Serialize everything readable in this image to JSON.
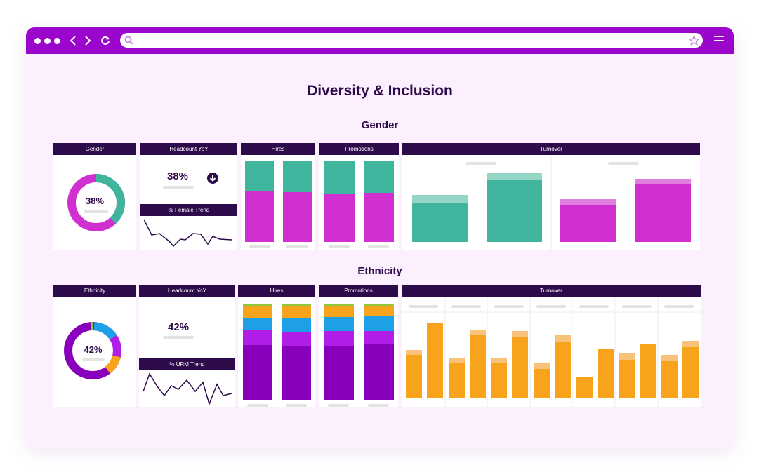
{
  "browser": {
    "icons": [
      "dot-icon",
      "back-icon",
      "forward-icon",
      "reload-icon",
      "search-icon",
      "star-icon",
      "menu-icon"
    ]
  },
  "page": {
    "title": "Diversity & Inclusion",
    "gender_title": "Gender",
    "ethnicity_title": "Ethnicity"
  },
  "gender": {
    "donut": {
      "label": "Gender",
      "value": "38%",
      "fraction": 0.38,
      "colors": [
        "#40b59d",
        "#d030d0"
      ]
    },
    "headcount": {
      "label": "Headcount YoY",
      "value": "38%",
      "arrow": "down"
    },
    "trend": {
      "label": "% Female Trend"
    },
    "hires": {
      "label": "Hires"
    },
    "promotions": {
      "label": "Promotions"
    },
    "turnover": {
      "label": "Turnover"
    }
  },
  "ethnicity": {
    "donut": {
      "label": "Ethnicity",
      "value": "42%"
    },
    "headcount": {
      "label": "Headcount YoY",
      "value": "42%"
    },
    "trend": {
      "label": "% URM Trend"
    },
    "hires": {
      "label": "Hires"
    },
    "promotions": {
      "label": "Promotions"
    },
    "turnover": {
      "label": "Turnover"
    }
  },
  "colors": {
    "accent": "#9b06cc",
    "header": "#2d0a4a",
    "teal": "#40b59d",
    "magenta": "#d030d0",
    "purple_dark": "#8800bb",
    "purple": "#b21ee8",
    "blue": "#1ea0e6",
    "orange": "#f7a31c",
    "orange_light": "#f8c27a",
    "green": "#8dc63f"
  }
}
